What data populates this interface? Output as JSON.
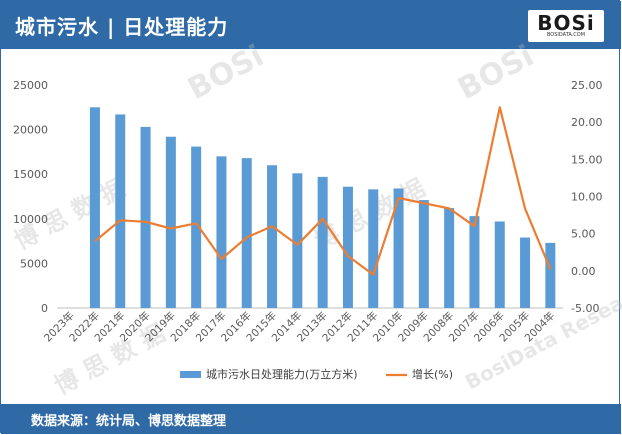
{
  "header": {
    "title": "城市污水 | 日处理能力"
  },
  "logo": {
    "text": "BOSi",
    "subtext": "BOSIDATA.COM"
  },
  "footer": {
    "source": "数据来源：统计局、博思数据整理"
  },
  "colors": {
    "bar": "#5b9bd5",
    "line": "#ed7d31",
    "header": "#2f6aa6"
  },
  "chart_data": {
    "type": "bar",
    "categories": [
      "2023年",
      "2022年",
      "2021年",
      "2020年",
      "2019年",
      "2018年",
      "2017年",
      "2016年",
      "2015年",
      "2014年",
      "2013年",
      "2012年",
      "2011年",
      "2010年",
      "2009年",
      "2008年",
      "2007年",
      "2006年",
      "2005年",
      "2004年"
    ],
    "series": [
      {
        "name": "城市污水日处理能力(万立方米)",
        "type": "bar",
        "axis": "left",
        "values": [
          null,
          22500,
          21700,
          20300,
          19200,
          18100,
          17000,
          16800,
          16000,
          15100,
          14700,
          13600,
          13300,
          13400,
          12100,
          11200,
          10300,
          9700,
          7900,
          7300
        ]
      },
      {
        "name": "增长(%)",
        "type": "line",
        "axis": "right",
        "values": [
          null,
          4.0,
          6.8,
          6.6,
          5.7,
          6.4,
          1.6,
          4.5,
          6.0,
          3.5,
          7.0,
          2.0,
          -0.5,
          9.8,
          9.1,
          8.4,
          6.0,
          22.0,
          8.4,
          0.2
        ]
      }
    ],
    "y_left": {
      "min": 0,
      "max": 25000,
      "ticks": [
        "0",
        "5000",
        "10000",
        "15000",
        "20000",
        "25000"
      ]
    },
    "y_right": {
      "min": -5,
      "max": 25,
      "ticks": [
        "-5.00",
        "0.00",
        "5.00",
        "10.00",
        "15.00",
        "20.00",
        "25.00"
      ]
    },
    "legend_position": "bottom",
    "grid": false
  }
}
